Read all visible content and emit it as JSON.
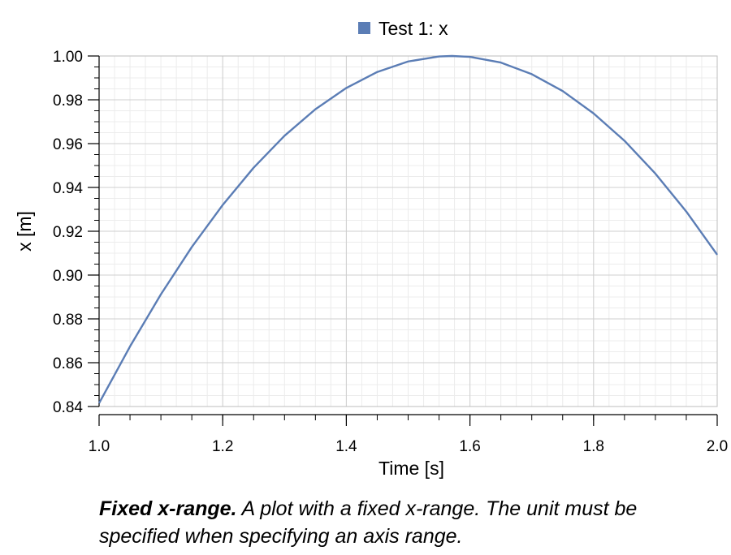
{
  "chart_data": {
    "type": "line",
    "legend": {
      "position": "top-center",
      "entries": [
        {
          "label": "Test 1: x",
          "color": "#5b7db5"
        }
      ]
    },
    "xlabel": "Time [s]",
    "ylabel": "x [m]",
    "xlim": [
      1.0,
      2.0
    ],
    "ylim": [
      0.84,
      1.0
    ],
    "x_ticks": [
      "1.0",
      "1.2",
      "1.4",
      "1.6",
      "1.8",
      "2.0"
    ],
    "y_ticks": [
      "0.84",
      "0.86",
      "0.88",
      "0.90",
      "0.92",
      "0.94",
      "0.96",
      "0.98",
      "1.00"
    ],
    "grid": true,
    "series": [
      {
        "name": "Test 1: x",
        "color": "#5b7db5",
        "x": [
          1.0,
          1.05,
          1.1,
          1.15,
          1.2,
          1.25,
          1.3,
          1.35,
          1.4,
          1.45,
          1.5,
          1.55,
          1.5708,
          1.6,
          1.65,
          1.7,
          1.75,
          1.8,
          1.85,
          1.9,
          1.95,
          2.0
        ],
        "y": [
          0.8415,
          0.8674,
          0.8912,
          0.9128,
          0.932,
          0.949,
          0.9636,
          0.9757,
          0.9854,
          0.9927,
          0.9975,
          0.9998,
          1.0,
          0.9996,
          0.997,
          0.9917,
          0.984,
          0.9738,
          0.9613,
          0.9463,
          0.929,
          0.9093
        ]
      }
    ]
  },
  "caption": {
    "bold": "Fixed x-range.",
    "text": " A plot with a fixed x-range. The unit must be specified when specifying an axis range."
  }
}
